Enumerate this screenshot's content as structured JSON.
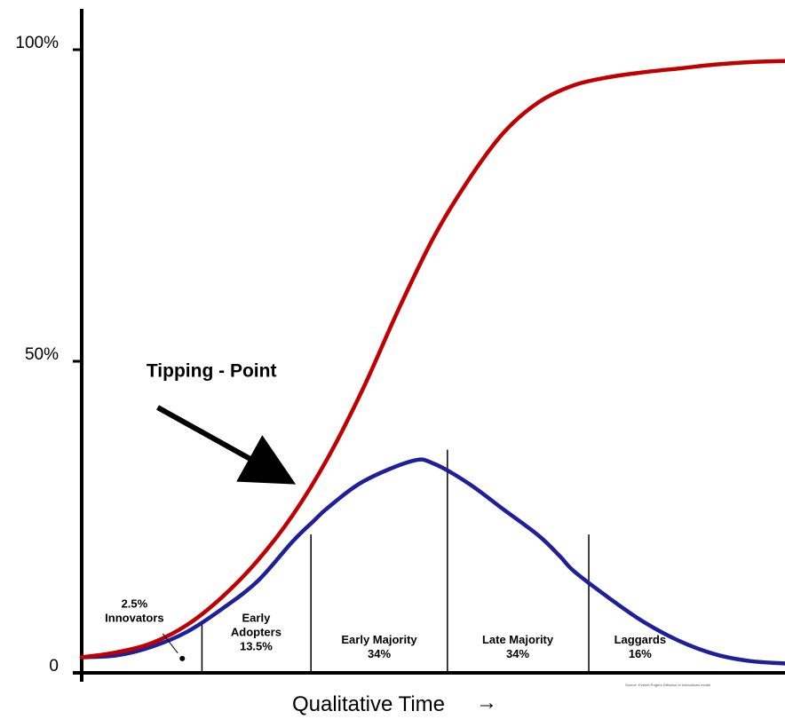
{
  "chart_data": {
    "type": "line",
    "title": "",
    "xlabel": "Qualitative Time",
    "xlabel_arrow": "→",
    "ylabel": "",
    "ylim": [
      0,
      100
    ],
    "yticks": [
      {
        "value": 0,
        "label": "0"
      },
      {
        "value": 50,
        "label": "50%"
      },
      {
        "value": 100,
        "label": "100%"
      }
    ],
    "x_range": [
      0,
      100
    ],
    "grid": false,
    "legend": "none",
    "colors": {
      "cumulative": "#c00000",
      "bell": "#1f1f99",
      "axis": "#000000",
      "divider": "#000000"
    },
    "series": [
      {
        "key": "cumulative",
        "x": [
          0,
          5,
          10,
          15,
          20,
          25,
          30,
          35,
          40,
          45,
          50,
          55,
          60,
          65,
          70,
          75,
          80,
          85,
          90,
          95,
          100
        ],
        "values": [
          2.5,
          3.3,
          4.8,
          7.7,
          12.2,
          18.0,
          25.3,
          34.5,
          45.6,
          58.2,
          69.8,
          79.1,
          86.7,
          91.6,
          94.3,
          95.6,
          96.4,
          97.0,
          97.6,
          98.0,
          98.2
        ]
      },
      {
        "key": "bell",
        "x": [
          0,
          5,
          10,
          15,
          20,
          25,
          30,
          33,
          35,
          40,
          47,
          50,
          55,
          60,
          65,
          68,
          70,
          75,
          80,
          85,
          90,
          95,
          100
        ],
        "values": [
          2.5,
          2.8,
          4.2,
          6.6,
          10.3,
          14.7,
          21.1,
          24.4,
          26.5,
          30.7,
          34.0,
          33.6,
          30.4,
          26.2,
          22.0,
          18.7,
          16.3,
          12.0,
          8.1,
          5.1,
          3.0,
          1.9,
          1.5
        ]
      }
    ],
    "dividers": [
      {
        "x": 17.1,
        "top": 8.3
      },
      {
        "x": 32.6,
        "top": 22.2
      },
      {
        "x": 52.0,
        "top": 35.8
      },
      {
        "x": 72.1,
        "top": 22.2
      }
    ],
    "segments": [
      {
        "lines": [
          "2.5%",
          "Innovators"
        ],
        "x": 7.5,
        "y": 10.5
      },
      {
        "lines": [
          "Early",
          "Adopters",
          "13.5%"
        ],
        "x": 24.8,
        "y": 8.2
      },
      {
        "lines": [
          "Early Majority",
          "34%"
        ],
        "x": 42.3,
        "y": 4.7
      },
      {
        "lines": [
          "Late Majority",
          "34%"
        ],
        "x": 62.0,
        "y": 4.7
      },
      {
        "lines": [
          "Laggards",
          "16%"
        ],
        "x": 79.4,
        "y": 4.7
      }
    ],
    "innovator_marker": {
      "x": 14.3,
      "y": 2.3
    },
    "annotation": {
      "text": "Tipping - Point",
      "text_x": 9.2,
      "text_y": 47.5,
      "arrow_from": [
        10.8,
        42.6
      ],
      "arrow_to": [
        28.4,
        31.2
      ]
    },
    "source_note": "Source: Everett Rogers Diffusion of innovations model"
  }
}
